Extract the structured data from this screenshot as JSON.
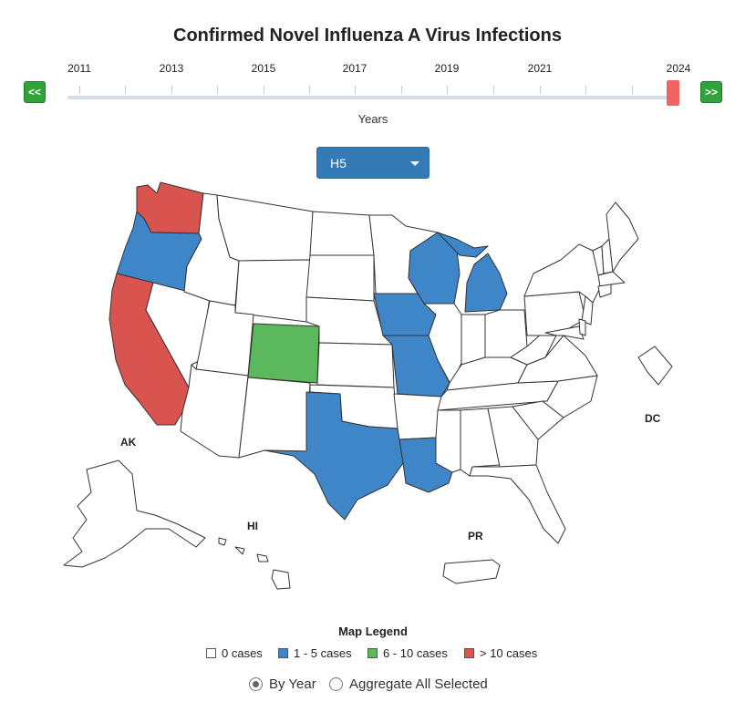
{
  "title": "Confirmed Novel Influenza A Virus Infections",
  "timeline": {
    "year_labels": [
      "2011",
      "2013",
      "2015",
      "2017",
      "2019",
      "2021",
      "2024"
    ],
    "selected_year": "2024",
    "prev_label": "<<",
    "next_label": ">>",
    "axis_title": "Years"
  },
  "subtype_dropdown": {
    "selected": "H5"
  },
  "colors": {
    "zero": "#ffffff",
    "low": "#3f86c9",
    "mid": "#5cb85c",
    "high": "#d9534f",
    "outline": "#333333"
  },
  "states": {
    "WA": "high",
    "CA": "high",
    "OR": "low",
    "WI": "low",
    "MI": "low",
    "IA": "low",
    "MO": "low",
    "TX": "low",
    "LA": "low",
    "CO": "mid"
  },
  "map_labels": {
    "ak": "AK",
    "hi": "HI",
    "pr": "PR",
    "dc": "DC"
  },
  "legend": {
    "title": "Map Legend",
    "items": [
      {
        "label": "0 cases",
        "color": "#ffffff"
      },
      {
        "label": "1 - 5 cases",
        "color": "#3f86c9"
      },
      {
        "label": "6 - 10 cases",
        "color": "#5cb85c"
      },
      {
        "label": "> 10 cases",
        "color": "#d9534f"
      }
    ]
  },
  "view_mode": {
    "options": [
      "By Year",
      "Aggregate All Selected"
    ],
    "selected": "By Year"
  }
}
